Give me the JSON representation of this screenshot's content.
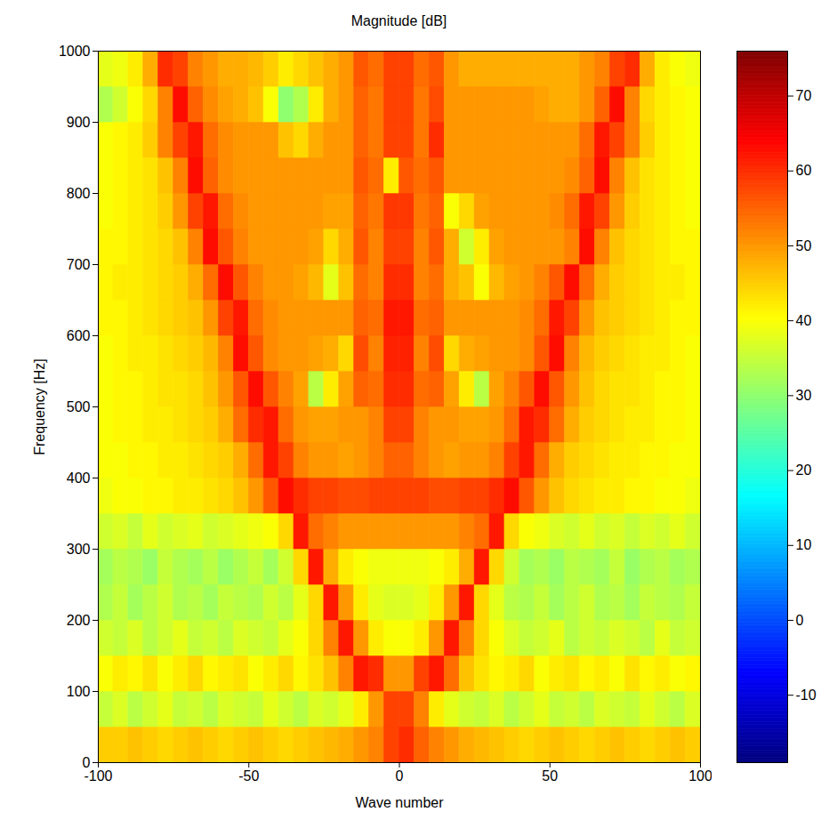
{
  "chart_data": {
    "type": "heatmap",
    "title": "Magnitude [dB]",
    "x_label": "Wave number",
    "y_label": "Frequency [Hz]",
    "xlim": [
      -100,
      100
    ],
    "xticks": [
      -100,
      -50,
      0,
      50,
      100
    ],
    "ylim": [
      0,
      1000
    ],
    "yticks": [
      0,
      100,
      200,
      300,
      400,
      500,
      600,
      700,
      800,
      900,
      1000
    ],
    "x_bins": [
      -100,
      -95,
      -90,
      -85,
      -80,
      -75,
      -70,
      -65,
      -60,
      -55,
      -50,
      -45,
      -40,
      -35,
      -30,
      -25,
      -20,
      -15,
      -10,
      -5,
      0,
      5,
      10,
      15,
      20,
      25,
      30,
      35,
      40,
      45,
      50,
      55,
      60,
      65,
      70,
      75,
      80,
      85,
      90,
      95,
      100
    ],
    "y_bins": [
      0,
      50,
      100,
      150,
      200,
      250,
      300,
      350,
      400,
      450,
      500,
      550,
      600,
      650,
      700,
      750,
      800,
      850,
      900,
      950,
      1000
    ],
    "values": [
      [
        45,
        45,
        46,
        45,
        44,
        45,
        46,
        45,
        44,
        45,
        46,
        45,
        44,
        45,
        46,
        47,
        48,
        50,
        52,
        58,
        60,
        55,
        52,
        50,
        48,
        47,
        46,
        45,
        44,
        45,
        46,
        45,
        44,
        45,
        46,
        45,
        44,
        45,
        46,
        45
      ],
      [
        35,
        37,
        34,
        36,
        38,
        35,
        36,
        34,
        37,
        36,
        35,
        38,
        36,
        34,
        37,
        36,
        38,
        42,
        50,
        58,
        58,
        52,
        42,
        38,
        36,
        35,
        37,
        34,
        36,
        38,
        35,
        36,
        34,
        37,
        36,
        35,
        38,
        36,
        34,
        37
      ],
      [
        40,
        42,
        41,
        43,
        40,
        42,
        44,
        41,
        42,
        43,
        40,
        42,
        44,
        41,
        43,
        46,
        52,
        62,
        60,
        50,
        50,
        58,
        62,
        54,
        46,
        43,
        41,
        42,
        44,
        40,
        42,
        43,
        41,
        42,
        40,
        43,
        41,
        42,
        40,
        41
      ],
      [
        36,
        35,
        37,
        34,
        36,
        38,
        35,
        36,
        34,
        37,
        36,
        35,
        38,
        40,
        44,
        52,
        62,
        50,
        42,
        40,
        40,
        42,
        50,
        62,
        52,
        44,
        40,
        37,
        35,
        36,
        38,
        34,
        36,
        35,
        37,
        36,
        34,
        38,
        35,
        36
      ],
      [
        33,
        35,
        32,
        34,
        36,
        33,
        34,
        32,
        35,
        34,
        33,
        36,
        34,
        38,
        44,
        62,
        50,
        42,
        38,
        37,
        37,
        38,
        42,
        50,
        62,
        44,
        38,
        34,
        33,
        35,
        32,
        34,
        36,
        33,
        34,
        32,
        35,
        34,
        33,
        35
      ],
      [
        32,
        34,
        33,
        31,
        35,
        33,
        32,
        34,
        31,
        33,
        35,
        32,
        36,
        44,
        62,
        48,
        42,
        40,
        39,
        39,
        39,
        39,
        40,
        42,
        48,
        62,
        44,
        36,
        32,
        33,
        31,
        34,
        33,
        32,
        35,
        31,
        33,
        34,
        32,
        33
      ],
      [
        36,
        37,
        35,
        38,
        36,
        37,
        38,
        36,
        37,
        38,
        39,
        40,
        44,
        62,
        54,
        52,
        50,
        50,
        50,
        50,
        50,
        50,
        50,
        50,
        52,
        54,
        62,
        44,
        40,
        39,
        37,
        36,
        38,
        36,
        37,
        35,
        37,
        36,
        38,
        36
      ],
      [
        39,
        40,
        40,
        41,
        41,
        42,
        42,
        43,
        44,
        46,
        50,
        56,
        63,
        60,
        58,
        58,
        57,
        57,
        58,
        58,
        58,
        58,
        57,
        57,
        58,
        58,
        60,
        63,
        56,
        50,
        46,
        44,
        43,
        42,
        42,
        41,
        41,
        40,
        40,
        39
      ],
      [
        40,
        40,
        41,
        41,
        42,
        42,
        43,
        44,
        45,
        48,
        54,
        62,
        58,
        52,
        50,
        50,
        49,
        50,
        52,
        55,
        55,
        52,
        50,
        49,
        50,
        50,
        52,
        58,
        62,
        54,
        48,
        45,
        44,
        43,
        42,
        42,
        41,
        41,
        40,
        40
      ],
      [
        40,
        41,
        41,
        42,
        42,
        43,
        44,
        45,
        48,
        54,
        60,
        62,
        54,
        50,
        49,
        49,
        50,
        50,
        52,
        58,
        58,
        52,
        50,
        50,
        49,
        49,
        50,
        54,
        62,
        60,
        54,
        48,
        45,
        44,
        43,
        42,
        42,
        41,
        41,
        40
      ],
      [
        40,
        41,
        41,
        42,
        43,
        43,
        44,
        46,
        50,
        56,
        63,
        56,
        52,
        49,
        34,
        42,
        49,
        55,
        54,
        60,
        60,
        54,
        55,
        49,
        42,
        34,
        49,
        52,
        56,
        63,
        56,
        50,
        46,
        44,
        43,
        43,
        42,
        41,
        41,
        40
      ],
      [
        40,
        41,
        42,
        42,
        43,
        44,
        45,
        47,
        52,
        63,
        56,
        51,
        50,
        50,
        49,
        48,
        44,
        57,
        52,
        61,
        61,
        52,
        57,
        44,
        48,
        49,
        50,
        50,
        51,
        56,
        63,
        52,
        47,
        45,
        44,
        43,
        42,
        42,
        41,
        40
      ],
      [
        41,
        41,
        42,
        43,
        44,
        45,
        46,
        50,
        58,
        62,
        54,
        51,
        50,
        50,
        50,
        50,
        50,
        55,
        54,
        62,
        62,
        54,
        55,
        50,
        50,
        50,
        50,
        50,
        51,
        54,
        62,
        58,
        50,
        46,
        45,
        44,
        43,
        42,
        41,
        41
      ],
      [
        41,
        42,
        42,
        43,
        44,
        45,
        48,
        54,
        63,
        56,
        52,
        50,
        50,
        49,
        47,
        38,
        46,
        54,
        52,
        60,
        60,
        52,
        54,
        48,
        46,
        40,
        47,
        49,
        50,
        52,
        56,
        63,
        54,
        48,
        45,
        44,
        43,
        42,
        42,
        41
      ],
      [
        41,
        41,
        42,
        43,
        44,
        46,
        52,
        63,
        56,
        52,
        50,
        50,
        50,
        50,
        49,
        44,
        48,
        56,
        52,
        58,
        58,
        52,
        56,
        48,
        36,
        42,
        49,
        50,
        50,
        50,
        50,
        52,
        63,
        52,
        46,
        44,
        43,
        42,
        41,
        41
      ],
      [
        40,
        41,
        42,
        43,
        45,
        50,
        58,
        62,
        54,
        51,
        50,
        50,
        50,
        50,
        50,
        49,
        49,
        55,
        53,
        59,
        59,
        53,
        55,
        40,
        44,
        49,
        50,
        50,
        50,
        50,
        51,
        54,
        62,
        58,
        50,
        45,
        43,
        42,
        41,
        40
      ],
      [
        40,
        41,
        42,
        43,
        46,
        52,
        63,
        55,
        51,
        50,
        50,
        50,
        50,
        50,
        50,
        50,
        50,
        56,
        54,
        42,
        56,
        54,
        56,
        50,
        50,
        50,
        50,
        50,
        50,
        50,
        50,
        51,
        55,
        63,
        52,
        46,
        43,
        42,
        41,
        40
      ],
      [
        40,
        41,
        42,
        45,
        52,
        58,
        62,
        54,
        51,
        50,
        50,
        50,
        46,
        44,
        48,
        50,
        50,
        55,
        53,
        58,
        58,
        53,
        60,
        50,
        50,
        50,
        50,
        50,
        50,
        50,
        50,
        50,
        54,
        62,
        58,
        52,
        45,
        42,
        41,
        40
      ],
      [
        33,
        36,
        40,
        44,
        52,
        63,
        55,
        51,
        49,
        48,
        46,
        40,
        30,
        33,
        42,
        48,
        50,
        55,
        53,
        58,
        58,
        53,
        57,
        50,
        50,
        50,
        50,
        50,
        50,
        49,
        48,
        48,
        50,
        55,
        63,
        52,
        44,
        42,
        41,
        40
      ],
      [
        38,
        39,
        42,
        48,
        60,
        58,
        52,
        50,
        48,
        48,
        47,
        45,
        42,
        44,
        46,
        48,
        50,
        56,
        54,
        58,
        58,
        54,
        56,
        50,
        48,
        48,
        48,
        48,
        48,
        48,
        48,
        48,
        50,
        52,
        58,
        60,
        48,
        42,
        40,
        39
      ]
    ],
    "colorbar": {
      "range": [
        -19,
        76
      ],
      "ticks": [
        -10,
        0,
        10,
        20,
        30,
        40,
        50,
        60,
        70
      ]
    }
  }
}
